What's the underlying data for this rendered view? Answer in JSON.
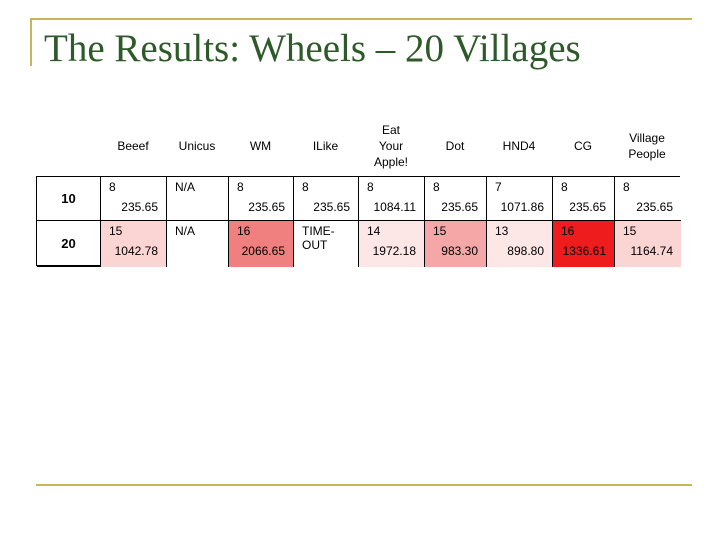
{
  "title": "The Results: Wheels – 20 Villages",
  "columns": [
    "Beeef",
    "Unicus",
    "WM",
    "ILike",
    "Eat\nYour\nApple!",
    "Dot",
    "HND4",
    "CG",
    "Village\nPeople"
  ],
  "rows": [
    {
      "label": "10",
      "cells": [
        {
          "v1": "8",
          "v2": "235.65",
          "bg": "#ffffff"
        },
        {
          "v1": "N/A",
          "v2": "",
          "bg": "#ffffff"
        },
        {
          "v1": "8",
          "v2": "235.65",
          "bg": "#ffffff"
        },
        {
          "v1": "8",
          "v2": "235.65",
          "bg": "#ffffff"
        },
        {
          "v1": "8",
          "v2": "1084.11",
          "bg": "#ffffff"
        },
        {
          "v1": "8",
          "v2": "235.65",
          "bg": "#ffffff"
        },
        {
          "v1": "7",
          "v2": "1071.86",
          "bg": "#ffffff"
        },
        {
          "v1": "8",
          "v2": "235.65",
          "bg": "#ffffff"
        },
        {
          "v1": "8",
          "v2": "235.65",
          "bg": "#ffffff"
        }
      ]
    },
    {
      "label": "20",
      "cells": [
        {
          "v1": "15",
          "v2": "1042.78",
          "bg": "#fbd4d4"
        },
        {
          "v1": "N/A",
          "v2": "",
          "bg": "#ffffff"
        },
        {
          "v1": "16",
          "v2": "2066.65",
          "bg": "#f08080"
        },
        {
          "v1": "TIME-\nOUT",
          "v2": "",
          "bg": "#ffffff"
        },
        {
          "v1": "14",
          "v2": "1972.18",
          "bg": "#fde6e6"
        },
        {
          "v1": "15",
          "v2": "983.30",
          "bg": "#f5a6a6"
        },
        {
          "v1": "13",
          "v2": "898.80",
          "bg": "#fde6e6"
        },
        {
          "v1": "16",
          "v2": "1336.61",
          "bg": "#ee1c1c"
        },
        {
          "v1": "15",
          "v2": "1164.74",
          "bg": "#fbd4d4"
        }
      ]
    }
  ],
  "colors": {
    "frame": "#c9b458",
    "title": "#2e5a2a"
  }
}
